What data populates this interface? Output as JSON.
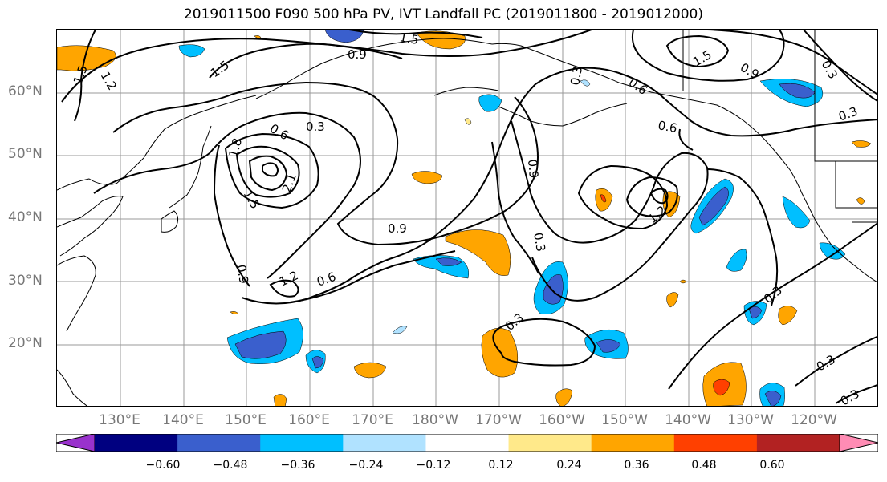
{
  "title": "2019011500 F090 500 hPa PV, IVT Landfall PC (2019011800 - 2019012000)",
  "lat_labels": [
    "60°N",
    "50°N",
    "40°N",
    "30°N",
    "20°N"
  ],
  "lon_labels": [
    "130°E",
    "140°E",
    "150°E",
    "160°E",
    "170°E",
    "180°W",
    "170°W",
    "160°W",
    "150°W",
    "140°W",
    "130°W",
    "120°W"
  ],
  "contour_labels": [
    "1.5",
    "1.2",
    "0.9",
    "1.5",
    "1.5",
    "0.6",
    "0.3",
    "1.8",
    "1.5",
    "2.1",
    "0.9",
    "0.6",
    "0.9",
    "1.2",
    "0.6",
    "0.3",
    "0.3",
    "0.9",
    "0.6",
    "0.3",
    "1.2",
    "0.3",
    "0.3",
    "0.3",
    "0.3",
    "1.5"
  ],
  "colorbar": {
    "ticks": [
      "−0.60",
      "−0.48",
      "−0.36",
      "−0.24",
      "−0.12",
      "0.12",
      "0.24",
      "0.36",
      "0.48",
      "0.60"
    ],
    "colors": [
      "#9932cc",
      "#000080",
      "#3a5fcd",
      "#00bfff",
      "#b0e2ff",
      "#ffffff",
      "#ffe98a",
      "#ffa500",
      "#ff4000",
      "#b22222",
      "#ff8cb4"
    ]
  },
  "colors": {
    "contour": "#000000",
    "coast": "#000000",
    "grid": "#999999",
    "negative_fills": [
      "#b0e2ff",
      "#00bfff",
      "#3a5fcd"
    ],
    "positive_fills": [
      "#ffe98a",
      "#ffa500",
      "#ff4000"
    ]
  }
}
